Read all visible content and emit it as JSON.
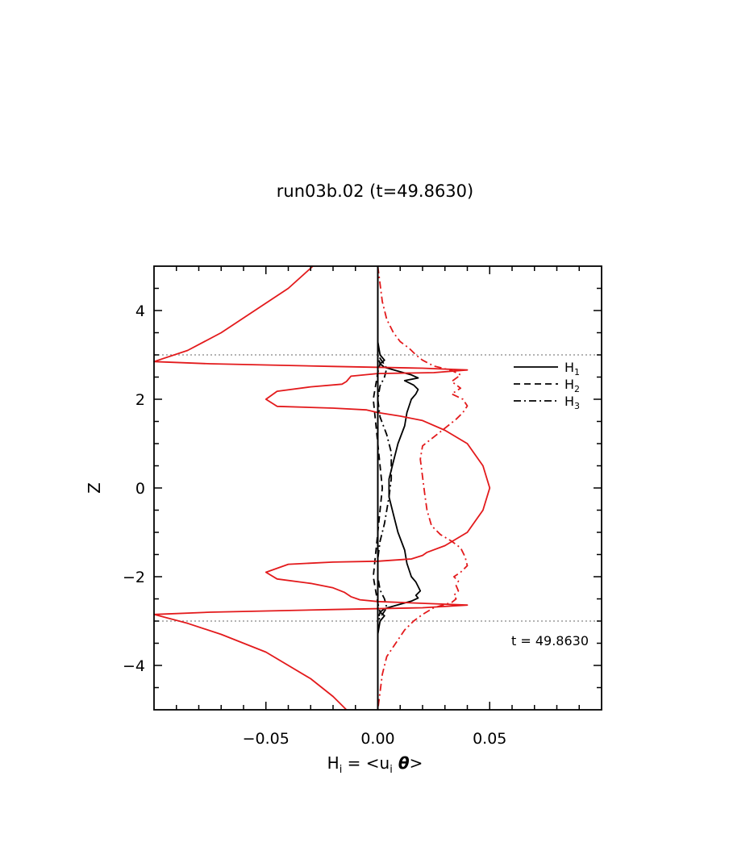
{
  "chart_data": {
    "type": "line",
    "title": "run03b.02 (t=49.8630)",
    "xlabel": {
      "main": "H",
      "sub": "i",
      "rest1": " = <u",
      "sub2": "i",
      "theta": " θ",
      "rest2": ">"
    },
    "ylabel": "Z",
    "xlim": [
      -0.1,
      0.1
    ],
    "ylim": [
      -5,
      5
    ],
    "xticks": [
      {
        "v": -0.05,
        "label": "−0.05"
      },
      {
        "v": 0.0,
        "label": "0.00"
      },
      {
        "v": 0.05,
        "label": "0.05"
      }
    ],
    "yticks": [
      {
        "v": 4,
        "label": "4"
      },
      {
        "v": 2,
        "label": "2"
      },
      {
        "v": 0,
        "label": "0"
      },
      {
        "v": -2,
        "label": "−2"
      },
      {
        "v": -4,
        "label": "−4"
      }
    ],
    "reference_lines_y": [
      3,
      -3
    ],
    "annotation": "t = 49.8630",
    "legend": {
      "placement": "top-right",
      "items": [
        {
          "label": "H",
          "sub": "1",
          "dash": "solid"
        },
        {
          "label": "H",
          "sub": "2",
          "dash": "dashed"
        },
        {
          "label": "H",
          "sub": "3",
          "dash": "dashdot"
        }
      ]
    },
    "series": [
      {
        "color": "#000000",
        "dash": "solid",
        "points": [
          [
            0.0,
            5
          ],
          [
            0.0,
            4
          ],
          [
            0.0,
            3.3
          ],
          [
            0.001,
            3.0
          ],
          [
            0.003,
            2.88
          ],
          [
            0.001,
            2.8
          ],
          [
            0.003,
            2.72
          ],
          [
            0.01,
            2.62
          ],
          [
            0.015,
            2.55
          ],
          [
            0.018,
            2.48
          ],
          [
            0.012,
            2.42
          ],
          [
            0.016,
            2.32
          ],
          [
            0.018,
            2.22
          ],
          [
            0.017,
            2.12
          ],
          [
            0.015,
            2.0
          ],
          [
            0.013,
            1.7
          ],
          [
            0.012,
            1.4
          ],
          [
            0.009,
            1.0
          ],
          [
            0.007,
            0.6
          ],
          [
            0.005,
            0.2
          ],
          [
            0.005,
            -0.2
          ],
          [
            0.007,
            -0.6
          ],
          [
            0.009,
            -1.0
          ],
          [
            0.012,
            -1.4
          ],
          [
            0.013,
            -1.7
          ],
          [
            0.015,
            -2.0
          ],
          [
            0.017,
            -2.12
          ],
          [
            0.018,
            -2.22
          ],
          [
            0.019,
            -2.32
          ],
          [
            0.017,
            -2.42
          ],
          [
            0.018,
            -2.48
          ],
          [
            0.015,
            -2.55
          ],
          [
            0.01,
            -2.62
          ],
          [
            0.003,
            -2.72
          ],
          [
            0.001,
            -2.8
          ],
          [
            0.003,
            -2.88
          ],
          [
            0.001,
            -3.0
          ],
          [
            0.0,
            -3.3
          ],
          [
            0.0,
            -4
          ],
          [
            0.0,
            -5
          ]
        ]
      },
      {
        "color": "#000000",
        "dash": "dashed",
        "points": [
          [
            0.0,
            5
          ],
          [
            0.0,
            3.0
          ],
          [
            0.001,
            2.8
          ],
          [
            0.0,
            2.6
          ],
          [
            -0.001,
            2.3
          ],
          [
            -0.002,
            2.0
          ],
          [
            -0.001,
            1.5
          ],
          [
            0.0,
            1.0
          ],
          [
            0.001,
            0.5
          ],
          [
            0.002,
            0.0
          ],
          [
            0.001,
            -0.5
          ],
          [
            0.0,
            -1.0
          ],
          [
            -0.001,
            -1.5
          ],
          [
            -0.002,
            -2.0
          ],
          [
            -0.001,
            -2.3
          ],
          [
            0.0,
            -2.6
          ],
          [
            0.001,
            -2.8
          ],
          [
            0.0,
            -3.0
          ],
          [
            0.0,
            -5
          ]
        ]
      },
      {
        "color": "#000000",
        "dash": "dashdot",
        "points": [
          [
            0.0,
            5
          ],
          [
            0.0,
            3.0
          ],
          [
            0.002,
            2.85
          ],
          [
            0.004,
            2.7
          ],
          [
            0.003,
            2.5
          ],
          [
            0.001,
            2.3
          ],
          [
            0.0,
            2.0
          ],
          [
            0.001,
            1.6
          ],
          [
            0.004,
            1.2
          ],
          [
            0.006,
            0.8
          ],
          [
            0.006,
            0.2
          ],
          [
            0.005,
            -0.2
          ],
          [
            0.003,
            -0.8
          ],
          [
            0.001,
            -1.2
          ],
          [
            0.0,
            -1.6
          ],
          [
            0.0,
            -2.0
          ],
          [
            0.001,
            -2.3
          ],
          [
            0.003,
            -2.5
          ],
          [
            0.004,
            -2.7
          ],
          [
            0.002,
            -2.85
          ],
          [
            0.0,
            -3.0
          ],
          [
            0.0,
            -5
          ]
        ]
      },
      {
        "color": "#e31a1c",
        "dash": "solid",
        "points": [
          [
            -0.029,
            5.0
          ],
          [
            -0.04,
            4.5
          ],
          [
            -0.055,
            4.0
          ],
          [
            -0.07,
            3.5
          ],
          [
            -0.085,
            3.1
          ],
          [
            -0.1,
            2.85
          ],
          [
            -0.075,
            2.8
          ],
          [
            -0.02,
            2.74
          ],
          [
            0.02,
            2.7
          ],
          [
            0.04,
            2.66
          ],
          [
            0.025,
            2.6
          ],
          [
            0.0,
            2.58
          ],
          [
            -0.012,
            2.52
          ],
          [
            -0.014,
            2.4
          ],
          [
            -0.016,
            2.34
          ],
          [
            -0.03,
            2.28
          ],
          [
            -0.045,
            2.18
          ],
          [
            -0.05,
            2.0
          ],
          [
            -0.045,
            1.84
          ],
          [
            -0.02,
            1.8
          ],
          [
            -0.005,
            1.76
          ],
          [
            0.0,
            1.7
          ],
          [
            0.01,
            1.62
          ],
          [
            0.02,
            1.52
          ],
          [
            0.03,
            1.3
          ],
          [
            0.04,
            1.0
          ],
          [
            0.047,
            0.5
          ],
          [
            0.05,
            0.0
          ],
          [
            0.047,
            -0.5
          ],
          [
            0.04,
            -1.0
          ],
          [
            0.03,
            -1.3
          ],
          [
            0.022,
            -1.45
          ],
          [
            0.02,
            -1.52
          ],
          [
            0.015,
            -1.6
          ],
          [
            0.0,
            -1.65
          ],
          [
            -0.02,
            -1.67
          ],
          [
            -0.04,
            -1.72
          ],
          [
            -0.05,
            -1.9
          ],
          [
            -0.045,
            -2.05
          ],
          [
            -0.03,
            -2.15
          ],
          [
            -0.02,
            -2.25
          ],
          [
            -0.015,
            -2.35
          ],
          [
            -0.012,
            -2.45
          ],
          [
            -0.008,
            -2.52
          ],
          [
            0.0,
            -2.56
          ],
          [
            0.02,
            -2.6
          ],
          [
            0.04,
            -2.64
          ],
          [
            0.02,
            -2.7
          ],
          [
            -0.02,
            -2.74
          ],
          [
            -0.075,
            -2.8
          ],
          [
            -0.1,
            -2.85
          ],
          [
            -0.085,
            -3.05
          ],
          [
            -0.07,
            -3.3
          ],
          [
            -0.05,
            -3.7
          ],
          [
            -0.03,
            -4.3
          ],
          [
            -0.02,
            -4.7
          ],
          [
            -0.014,
            -5.0
          ]
        ]
      },
      {
        "color": "#e31a1c",
        "dash": "dashdot",
        "points": [
          [
            0.0,
            5.0
          ],
          [
            0.002,
            4.2
          ],
          [
            0.004,
            3.8
          ],
          [
            0.007,
            3.5
          ],
          [
            0.01,
            3.3
          ],
          [
            0.014,
            3.15
          ],
          [
            0.017,
            3.0
          ],
          [
            0.02,
            2.88
          ],
          [
            0.025,
            2.75
          ],
          [
            0.033,
            2.65
          ],
          [
            0.037,
            2.55
          ],
          [
            0.033,
            2.4
          ],
          [
            0.037,
            2.25
          ],
          [
            0.033,
            2.12
          ],
          [
            0.038,
            2.0
          ],
          [
            0.04,
            1.85
          ],
          [
            0.038,
            1.7
          ],
          [
            0.035,
            1.55
          ],
          [
            0.03,
            1.35
          ],
          [
            0.025,
            1.15
          ],
          [
            0.02,
            0.95
          ],
          [
            0.019,
            0.65
          ],
          [
            0.02,
            0.25
          ],
          [
            0.021,
            -0.15
          ],
          [
            0.022,
            -0.5
          ],
          [
            0.024,
            -0.85
          ],
          [
            0.028,
            -1.05
          ],
          [
            0.033,
            -1.2
          ],
          [
            0.037,
            -1.35
          ],
          [
            0.039,
            -1.55
          ],
          [
            0.04,
            -1.75
          ],
          [
            0.037,
            -1.9
          ],
          [
            0.034,
            -2.0
          ],
          [
            0.036,
            -2.1
          ],
          [
            0.035,
            -2.2
          ],
          [
            0.036,
            -2.32
          ],
          [
            0.034,
            -2.42
          ],
          [
            0.035,
            -2.5
          ],
          [
            0.033,
            -2.58
          ],
          [
            0.025,
            -2.7
          ],
          [
            0.02,
            -2.85
          ],
          [
            0.016,
            -3.0
          ],
          [
            0.012,
            -3.2
          ],
          [
            0.008,
            -3.5
          ],
          [
            0.004,
            -3.8
          ],
          [
            0.002,
            -4.2
          ],
          [
            0.0,
            -5.0
          ]
        ]
      }
    ]
  }
}
